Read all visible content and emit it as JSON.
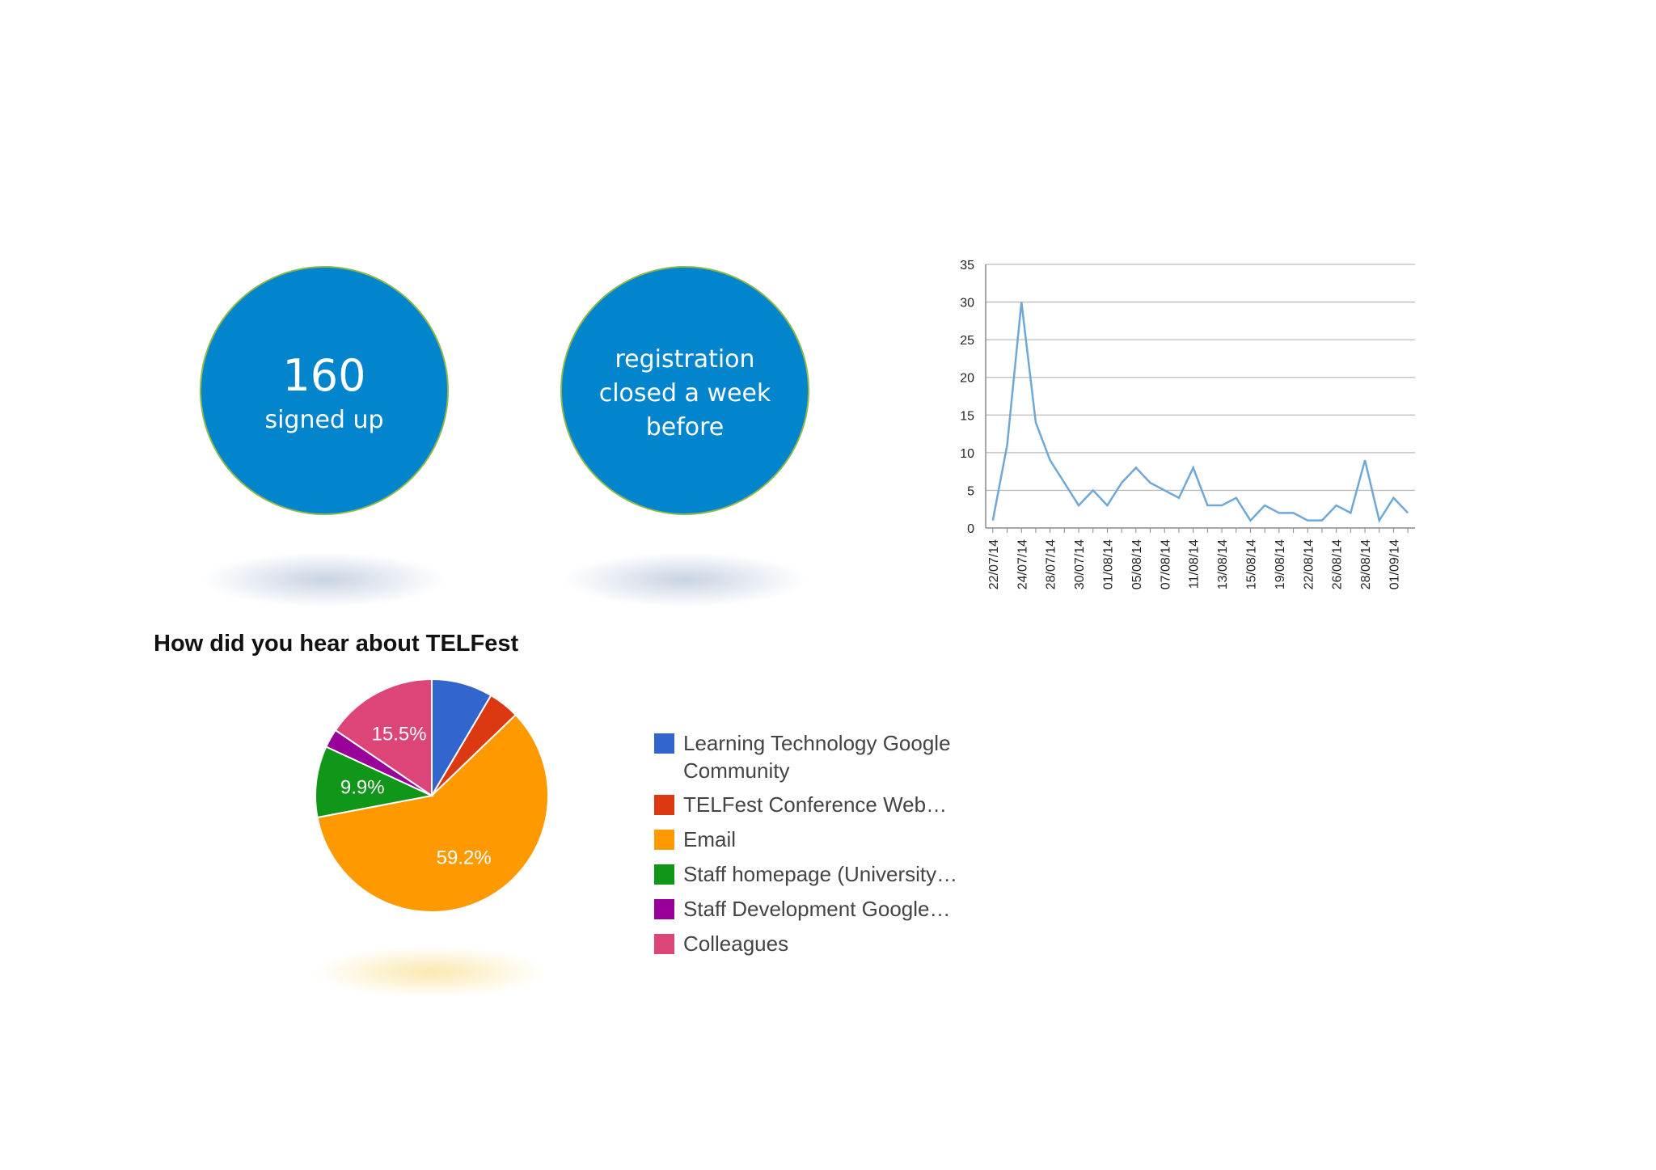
{
  "circles": [
    {
      "number": "160",
      "caption": "signed up"
    },
    {
      "caption": "registration closed a week before"
    }
  ],
  "chart_data": [
    {
      "type": "line",
      "color": "#6fa8d6",
      "grid": true,
      "categories": [
        "22/07/14",
        null,
        "24/07/14",
        null,
        "28/07/14",
        null,
        "30/07/14",
        null,
        "01/08/14",
        null,
        "05/08/14",
        null,
        "07/08/14",
        null,
        "11/08/14",
        null,
        "13/08/14",
        null,
        "15/08/14",
        null,
        "19/08/14",
        null,
        "22/08/14",
        null,
        "26/08/14",
        null,
        "28/08/14",
        null,
        "01/09/14",
        null
      ],
      "values": [
        1,
        11,
        30,
        14,
        9,
        6,
        3,
        5,
        3,
        6,
        8,
        6,
        5,
        4,
        8,
        3,
        3,
        4,
        1,
        3,
        2,
        2,
        1,
        1,
        3,
        2,
        9,
        1,
        4,
        2
      ],
      "ylim": [
        0,
        35
      ],
      "yticks": [
        0,
        5,
        10,
        15,
        20,
        25,
        30,
        35
      ]
    },
    {
      "type": "pie",
      "title": "How did you hear about TELFest",
      "categories": [
        "Learning Technology Google Community",
        "TELFest Conference Web…",
        "Email",
        "Staff homepage (University…",
        "Staff Development Google…",
        "Colleagues"
      ],
      "values": [
        8.5,
        4.3,
        59.2,
        9.9,
        2.6,
        15.5
      ],
      "value_labels": [
        null,
        null,
        "59.2%",
        "9.9%",
        null,
        "15.5%"
      ],
      "colors": [
        "#3366cc",
        "#dc3912",
        "#ff9900",
        "#109618",
        "#990099",
        "#dd4477"
      ]
    }
  ]
}
